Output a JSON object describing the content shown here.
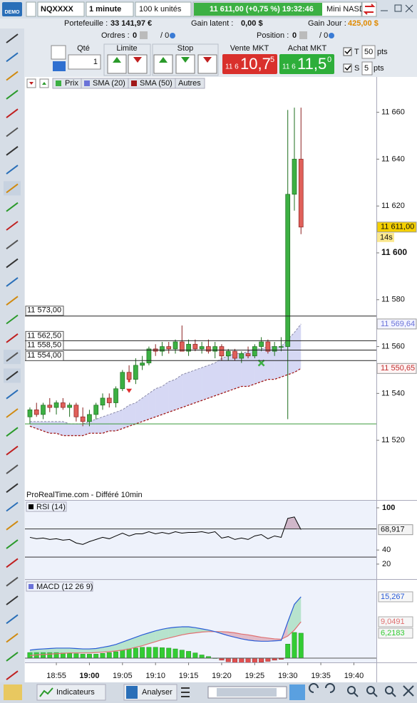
{
  "toolbar": {
    "demo": "DEMO",
    "symbol": "NQXXXX",
    "interval": "1 minute",
    "units": "100 k unités",
    "quote": "11 611,00 (+0,75 %) 19:32:46",
    "instrument": "Mini NASD"
  },
  "account": {
    "portfolio_label": "Portefeuille :",
    "portfolio": "33 141,97 €",
    "latent_label": "Gain latent :",
    "latent": "0,00 $",
    "day_label": "Gain Jour :",
    "day": "425,00 $",
    "orders_label": "Ordres :",
    "orders": "0",
    "orders_total": "/ 0",
    "position_label": "Position :",
    "position": "0",
    "position_total": "/ 0"
  },
  "order_panel": {
    "qty_label": "Qté",
    "qty": "1",
    "limit": "Limite",
    "stop": "Stop",
    "sell_label": "Vente MKT",
    "sell_big": "11 6",
    "sell_main": "10,7",
    "sell_sup": "5",
    "buy_label": "Achat MKT",
    "buy_big": "11 6",
    "buy_main": "11,5",
    "buy_sup": "0",
    "t_label": "T",
    "t_value": "50",
    "t_unit": "pts",
    "s_label": "S",
    "s_value": "5",
    "s_unit": "pts"
  },
  "chart_data": [
    {
      "type": "candlestick",
      "name": "Prix",
      "others": "Autres",
      "source": "ProRealTime.com - Différé 10min",
      "up_color": "#3cb043",
      "down_color": "#e0605a",
      "xlim": [
        -0.75,
        52.4
      ],
      "xticks": [
        {
          "value": 4,
          "label": "18:55"
        },
        {
          "value": 9,
          "label": "19:00"
        },
        {
          "value": 14,
          "label": "19:05"
        },
        {
          "value": 19,
          "label": "19:10"
        },
        {
          "value": 24,
          "label": "19:15"
        },
        {
          "value": 29,
          "label": "19:20"
        },
        {
          "value": 34,
          "label": "19:25"
        },
        {
          "value": 39,
          "label": "19:30"
        },
        {
          "value": 44,
          "label": "19:35"
        },
        {
          "value": 49,
          "label": "19:40"
        }
      ],
      "ylim": [
        11494.5,
        11675.1
      ],
      "yticks": [
        {
          "value": 11660,
          "label": "11 660"
        },
        {
          "value": 11640,
          "label": "11 640"
        },
        {
          "value": 11620,
          "label": "11 620"
        },
        {
          "value": 11600,
          "label": "11 600"
        },
        {
          "value": 11580,
          "label": "11 580"
        },
        {
          "value": 11560,
          "label": "11 560"
        },
        {
          "value": 11540,
          "label": "11 540"
        },
        {
          "value": 11520,
          "label": "11 520"
        }
      ],
      "open": [
        11530,
        11533,
        11531,
        11535,
        11534,
        11536,
        11534,
        11535,
        11530,
        11528,
        11531,
        11535,
        11538,
        11536,
        11542,
        11549,
        11546,
        11552,
        11553,
        11559,
        11558,
        11560,
        11559,
        11562,
        11558,
        11561,
        11559,
        11560,
        11558,
        11560,
        11556,
        11558,
        11555,
        11557,
        11556,
        11560,
        11562,
        11558,
        11560,
        11560,
        11625,
        11640
      ],
      "high": [
        11534,
        11536,
        11536,
        11538,
        11537,
        11538,
        11536,
        11536,
        11534,
        11533,
        11536,
        11540,
        11540,
        11543,
        11550,
        11552,
        11555,
        11556,
        11560,
        11561,
        11562,
        11562,
        11563,
        11569,
        11563,
        11563,
        11562,
        11563,
        11562,
        11561,
        11559,
        11559,
        11558,
        11560,
        11561,
        11564,
        11563,
        11562,
        11564,
        11661,
        11662,
        11662
      ],
      "low": [
        11527,
        11530,
        11529,
        11532,
        11531,
        11533,
        11530,
        11528,
        11526,
        11526,
        11529,
        11533,
        11534,
        11534,
        11541,
        11545,
        11544,
        11550,
        11552,
        11556,
        11556,
        11557,
        11557,
        11558,
        11556,
        11558,
        11557,
        11557,
        11555,
        11554,
        11554,
        11554,
        11553,
        11555,
        11555,
        11558,
        11557,
        11556,
        11558,
        11529,
        11618,
        11608
      ],
      "close": [
        11533,
        11531,
        11535,
        11534,
        11536,
        11534,
        11535,
        11530,
        11528,
        11531,
        11535,
        11538,
        11536,
        11542,
        11549,
        11546,
        11552,
        11553,
        11559,
        11558,
        11560,
        11559,
        11562,
        11558,
        11561,
        11559,
        11560,
        11558,
        11560,
        11556,
        11558,
        11555,
        11557,
        11556,
        11560,
        11562,
        11558,
        11560,
        11560,
        11625,
        11640,
        11611
      ],
      "last_price": {
        "value": 11611,
        "label": "11 611,00"
      },
      "countdown": "14s",
      "series": [
        {
          "name": "SMA (20)",
          "color": "#6a72d8",
          "values": [
            11528,
            11528,
            11528,
            11528,
            11528,
            11528,
            11527,
            11527,
            11527,
            11528,
            11529,
            11530,
            11531,
            11532,
            11533,
            11535,
            11536,
            11538,
            11540,
            11542,
            11543,
            11545,
            11546,
            11548,
            11549,
            11550,
            11551,
            11552,
            11553,
            11555,
            11556,
            11557,
            11557,
            11558,
            11559,
            11559,
            11560,
            11560,
            11560,
            11563,
            11566,
            11569.64
          ],
          "last_label": "11 569,64"
        },
        {
          "name": "SMA (50)",
          "color": "#a01818",
          "values": [
            11526,
            11525,
            11524,
            11523,
            11523,
            11522,
            11522,
            11522,
            11522,
            11523,
            11523,
            11523,
            11524,
            11524,
            11525,
            11526,
            11527,
            11528,
            11529,
            11530,
            11531,
            11532,
            11533,
            11534,
            11535,
            11536,
            11537,
            11538,
            11539,
            11540,
            11541,
            11542,
            11543,
            11543,
            11544,
            11545,
            11546,
            11546,
            11547,
            11548,
            11549,
            11550.65
          ],
          "last_label": "11 550,65"
        }
      ],
      "levels": [
        {
          "value": 11573,
          "label": "11 573,00"
        },
        {
          "value": 11562.5,
          "label": "11 562,50"
        },
        {
          "value": 11558.5,
          "label": "11 558,50"
        },
        {
          "value": 11554,
          "label": "11 554,00"
        }
      ],
      "stop_level": 11527
    },
    {
      "type": "line",
      "title": "RSI (14)",
      "ylim": [
        -1.3,
        110.1
      ],
      "yticks": [
        100,
        40,
        20
      ],
      "levels": [
        70,
        30
      ],
      "series": [
        {
          "color": "#000000",
          "values": [
            58,
            56,
            57,
            55,
            56,
            54,
            55,
            50,
            48,
            52,
            55,
            58,
            56,
            60,
            64,
            60,
            63,
            63,
            66,
            63,
            65,
            63,
            66,
            64,
            65,
            65,
            66,
            64,
            66,
            57,
            59,
            55,
            57,
            55,
            60,
            62,
            56,
            60,
            58,
            85,
            87,
            68.917
          ],
          "last_label": "68,917"
        }
      ]
    },
    {
      "type": "macd",
      "title": "MACD (12 26 9)",
      "ylim": [
        -1.06,
        19.33
      ],
      "series": [
        {
          "color": "#2a5bd7",
          "values": [
            2,
            2.2,
            2.3,
            2.4,
            2.5,
            2.5,
            2.5,
            2.4,
            2.3,
            2.3,
            2.4,
            2.7,
            3.0,
            3.4,
            4.0,
            4.6,
            5.2,
            5.8,
            6.3,
            6.8,
            7.2,
            7.5,
            7.7,
            7.8,
            7.8,
            7.6,
            7.3,
            7.0,
            6.6,
            6.1,
            5.6,
            5.2,
            4.8,
            4.5,
            4.3,
            4.2,
            4.2,
            4.3,
            4.4,
            9.0,
            13.4,
            15.267
          ],
          "last_label": "15,267"
        },
        {
          "color": "#e07070",
          "values": [
            0.6,
            0.8,
            0.9,
            1.0,
            1.1,
            1.2,
            1.3,
            1.3,
            1.3,
            1.3,
            1.4,
            1.5,
            1.6,
            1.8,
            2.0,
            2.3,
            2.7,
            3.1,
            3.6,
            4.1,
            4.6,
            5.0,
            5.4,
            5.8,
            6.1,
            6.3,
            6.5,
            6.6,
            6.6,
            6.6,
            6.5,
            6.3,
            6.0,
            5.8,
            5.5,
            5.2,
            5.0,
            4.8,
            4.7,
            5.5,
            7.0,
            9.0491
          ],
          "last_label": "9,0491"
        },
        {
          "color": "#33cc33",
          "values": [
            1.4,
            1.4,
            1.4,
            1.4,
            1.4,
            1.3,
            1.2,
            1.1,
            1.0,
            1.0,
            1.0,
            1.2,
            1.4,
            1.6,
            2.0,
            2.3,
            2.5,
            2.7,
            2.7,
            2.7,
            2.6,
            2.5,
            2.3,
            2.0,
            1.7,
            1.3,
            0.8,
            0.4,
            0.0,
            -0.5,
            -0.9,
            -1.1,
            -1.2,
            -1.3,
            -1.2,
            -1.0,
            -0.8,
            -0.5,
            -0.3,
            3.5,
            6.4,
            6.2183
          ],
          "last_label": "6,2183"
        }
      ]
    }
  ],
  "footer": {
    "indicators": "Indicateurs",
    "analyze": "Analyser"
  }
}
